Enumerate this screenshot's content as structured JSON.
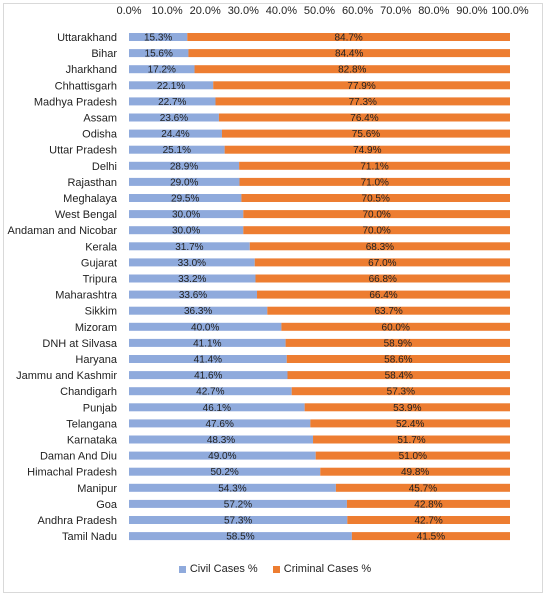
{
  "chart_data": {
    "type": "bar",
    "orientation": "horizontal",
    "stacked": "percent",
    "categories": [
      "Uttarakhand",
      "Bihar",
      "Jharkhand",
      "Chhattisgarh",
      "Madhya Pradesh",
      "Assam",
      "Odisha",
      "Uttar Pradesh",
      "Delhi",
      "Rajasthan",
      "Meghalaya",
      "West Bengal",
      "Andaman and Nicobar",
      "Kerala",
      "Gujarat",
      "Tripura",
      "Maharashtra",
      "Sikkim",
      "Mizoram",
      "DNH at Silvasa",
      "Haryana",
      "Jammu and Kashmir",
      "Chandigarh",
      "Punjab",
      "Telangana",
      "Karnataka",
      "Daman And Diu",
      "Himachal Pradesh",
      "Manipur",
      "Goa",
      "Andhra Pradesh",
      "Tamil Nadu"
    ],
    "series": [
      {
        "name": "Civil Cases %",
        "color": "#8faadc",
        "labels": [
          "15.3%",
          "15.6%",
          "17.2%",
          "22.1%",
          "22.7%",
          "23.6%",
          "24.4%",
          "25.1%",
          "28.9%",
          "29.0%",
          "29.5%",
          "30.0%",
          "30.0%",
          "31.7%",
          "33.0%",
          "33.2%",
          "33.6%",
          "36.3%",
          "40.0%",
          "41.1%",
          "41.4%",
          "41.6%",
          "42.7%",
          "46.1%",
          "47.6%",
          "48.3%",
          "49.0%",
          "50.2%",
          "54.3%",
          "57.2%",
          "57.3%",
          "58.5%"
        ],
        "values": [
          15.3,
          15.6,
          17.2,
          22.1,
          22.7,
          23.6,
          24.4,
          25.1,
          28.9,
          29.0,
          29.5,
          30.0,
          30.0,
          31.7,
          33.0,
          33.2,
          33.6,
          36.3,
          40.0,
          41.1,
          41.4,
          41.6,
          42.7,
          46.1,
          47.6,
          48.3,
          49.0,
          50.2,
          54.3,
          57.2,
          57.3,
          58.5
        ]
      },
      {
        "name": "Criminal Cases %",
        "color": "#ed7d31",
        "labels": [
          "84.7%",
          "84.4%",
          "82.8%",
          "77.9%",
          "77.3%",
          "76.4%",
          "75.6%",
          "74.9%",
          "71.1%",
          "71.0%",
          "70.5%",
          "70.0%",
          "70.0%",
          "68.3%",
          "67.0%",
          "66.8%",
          "66.4%",
          "63.7%",
          "60.0%",
          "58.9%",
          "58.6%",
          "58.4%",
          "57.3%",
          "53.9%",
          "52.4%",
          "51.7%",
          "51.0%",
          "49.8%",
          "45.7%",
          "42.8%",
          "42.7%",
          "41.5%"
        ],
        "values": [
          84.7,
          84.4,
          82.8,
          77.9,
          77.3,
          76.4,
          75.6,
          74.9,
          71.1,
          71.0,
          70.5,
          70.0,
          70.0,
          68.3,
          67.0,
          66.8,
          66.4,
          63.7,
          60.0,
          58.9,
          58.6,
          58.4,
          57.3,
          53.9,
          52.4,
          51.7,
          51.0,
          49.8,
          45.7,
          42.8,
          42.7,
          41.5
        ]
      }
    ],
    "xticks": [
      "0.0%",
      "10.0%",
      "20.0%",
      "30.0%",
      "40.0%",
      "50.0%",
      "60.0%",
      "70.0%",
      "80.0%",
      "90.0%",
      "100.0%"
    ],
    "xlim": [
      0,
      100
    ],
    "xaxis_position": "top",
    "legend_position": "bottom",
    "grid": false,
    "title": "",
    "xlabel": "",
    "ylabel": ""
  }
}
